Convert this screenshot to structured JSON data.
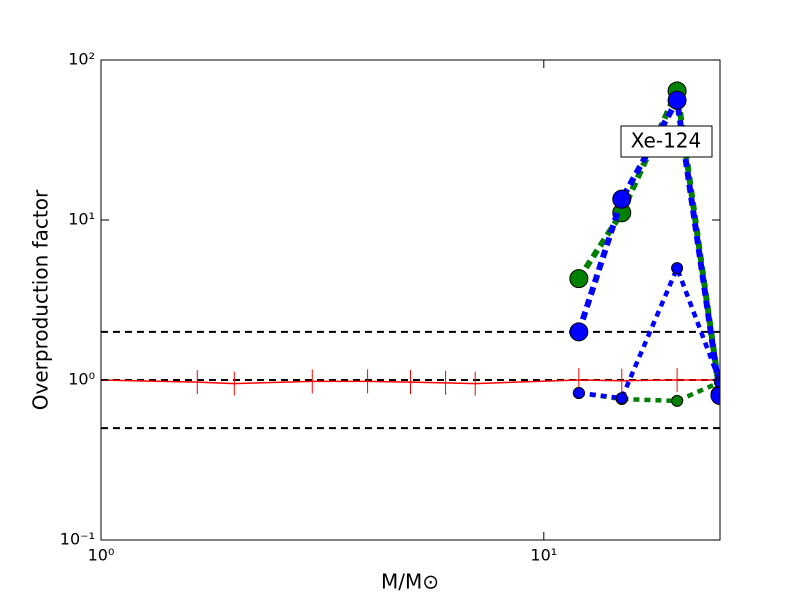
{
  "chart_data": {
    "type": "line",
    "x_label": "M/M⊙",
    "y_label": "Overproduction factor",
    "annotation": "Xe-124",
    "xscale": "log",
    "yscale": "log",
    "xlim": [
      1,
      25
    ],
    "ylim": [
      0.1,
      100
    ],
    "xticks": [
      {
        "value": 1,
        "label": "10⁰"
      },
      {
        "value": 10,
        "label": "10¹"
      }
    ],
    "yticks": [
      {
        "value": 0.1,
        "label": "10⁻¹"
      },
      {
        "value": 1,
        "label": "10⁰"
      },
      {
        "value": 10,
        "label": "10¹"
      },
      {
        "value": 100,
        "label": "10²"
      }
    ],
    "reference_lines": [
      2,
      1,
      0.5
    ],
    "series": [
      {
        "color": "#ff0000",
        "style": "solid",
        "marker": "tick",
        "x": [
          1,
          1.65,
          2,
          3,
          4,
          5,
          6,
          7,
          12,
          15,
          20,
          25
        ],
        "values": [
          1.0,
          0.97,
          0.95,
          0.98,
          0.98,
          0.97,
          0.96,
          0.95,
          1.0,
          0.99,
          1.0,
          1.0
        ]
      },
      {
        "color": "#008000",
        "style": "dashed",
        "marker": "large",
        "x": [
          12,
          15,
          20,
          25
        ],
        "values": [
          4.3,
          11.1,
          64,
          0.81
        ]
      },
      {
        "color": "#0000ff",
        "style": "dashed",
        "marker": "large",
        "x": [
          12,
          15,
          20,
          25
        ],
        "values": [
          2.0,
          13.5,
          56,
          0.8
        ]
      },
      {
        "color": "#008000",
        "style": "dashed",
        "marker": "small",
        "x": [
          12,
          15,
          20,
          25
        ],
        "values": [
          0.83,
          0.76,
          0.74,
          0.97
        ]
      },
      {
        "color": "#0000ff",
        "style": "dashed",
        "marker": "small",
        "x": [
          12,
          15,
          20,
          25
        ],
        "values": [
          0.83,
          0.77,
          5.0,
          0.97
        ]
      }
    ]
  }
}
